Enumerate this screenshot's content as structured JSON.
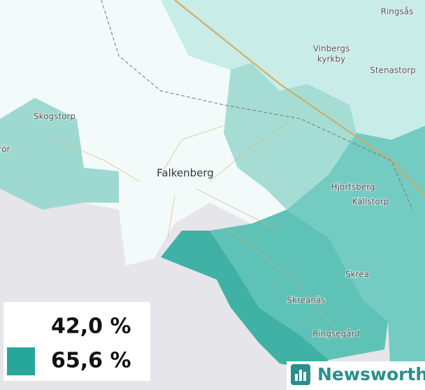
{
  "places": [
    "Ringsås",
    "Vinbergs",
    "kyrkby",
    "Stenastorp",
    "Skogstorp",
    "rör",
    "Falkenberg",
    "Hjortsberg",
    "Källstorp",
    "Skrea",
    "Skreanäs",
    "Ringsegård"
  ],
  "legend": [
    {
      "label": "42,0 %",
      "color": "#ffffff"
    },
    {
      "label": "65,6 %",
      "color": "#27a79b"
    }
  ],
  "brand": "Newsworthy"
}
